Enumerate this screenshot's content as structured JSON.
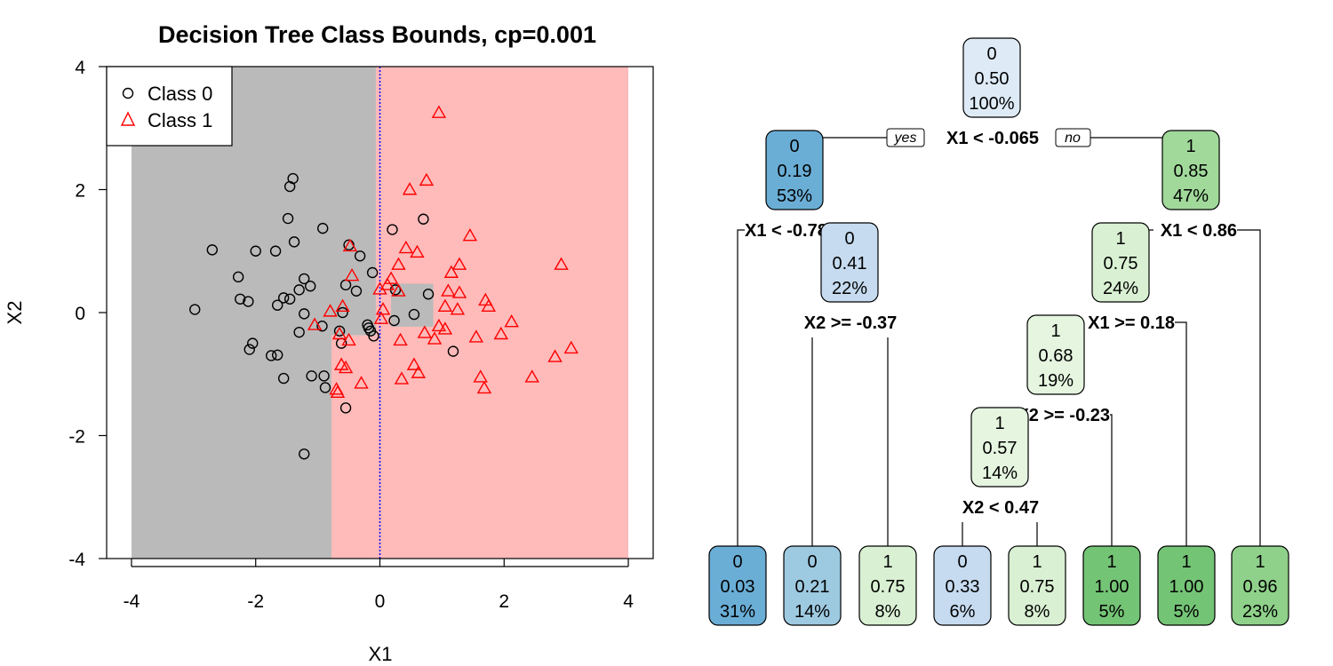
{
  "chart_data": [
    {
      "type": "scatter",
      "title": "Decision Tree Class Bounds, cp=0.001",
      "xlabel": "X1",
      "ylabel": "X2",
      "xlim": [
        -4.4,
        4.4
      ],
      "ylim": [
        -4.0,
        4.0
      ],
      "xticks": [
        "-4",
        "-2",
        "0",
        "2",
        "4"
      ],
      "yticks": [
        "-4",
        "-2",
        "0",
        "2",
        "4"
      ],
      "xtick_values": [
        -4,
        -2,
        0,
        2,
        4
      ],
      "ytick_values": [
        -4,
        -2,
        0,
        2,
        4
      ],
      "grid": false,
      "legend_position": "top-left",
      "legend": [
        {
          "label": "Class 0",
          "marker": "circle",
          "color": "#000000"
        },
        {
          "label": "Class 1",
          "marker": "triangle",
          "color": "#ff0000"
        }
      ],
      "regions": [
        {
          "class": "0",
          "color": "#bababa",
          "x0": -4,
          "x1": -0.78,
          "y0": -4,
          "y1": 4
        },
        {
          "class": "0",
          "color": "#bababa",
          "x0": -0.78,
          "x1": -0.065,
          "y0": -0.37,
          "y1": 4
        },
        {
          "class": "1",
          "color": "#ffbaba",
          "x0": -0.78,
          "x1": -0.065,
          "y0": -4,
          "y1": -0.37
        },
        {
          "class": "1",
          "color": "#ffbaba",
          "x0": -0.065,
          "x1": 4,
          "y0": -4,
          "y1": 4
        },
        {
          "class": "0",
          "color": "#bababa",
          "x0": 0.18,
          "x1": 0.86,
          "y0": -0.23,
          "y1": 0.47
        }
      ],
      "vline": {
        "x": 0,
        "color": "#0000ff",
        "style": "dotted"
      },
      "series": [
        {
          "name": "Class 0",
          "marker": "circle",
          "color": "#000000",
          "points": [
            [
              -1.4,
              2.18
            ],
            [
              -1.45,
              2.05
            ],
            [
              -1.48,
              1.53
            ],
            [
              -0.92,
              1.37
            ],
            [
              -1.38,
              1.15
            ],
            [
              -2.7,
              1.02
            ],
            [
              -2.0,
              1.0
            ],
            [
              -1.68,
              1.0
            ],
            [
              -0.5,
              1.1
            ],
            [
              -2.28,
              0.58
            ],
            [
              -1.22,
              0.55
            ],
            [
              -1.12,
              0.43
            ],
            [
              -2.25,
              0.22
            ],
            [
              -2.12,
              0.18
            ],
            [
              -1.55,
              0.24
            ],
            [
              -1.45,
              0.22
            ],
            [
              -1.3,
              0.37
            ],
            [
              -1.65,
              0.12
            ],
            [
              -2.98,
              0.05
            ],
            [
              -1.22,
              -0.02
            ],
            [
              -1.3,
              -0.32
            ],
            [
              -0.93,
              -0.22
            ],
            [
              -2.05,
              -0.5
            ],
            [
              -2.1,
              -0.6
            ],
            [
              -1.75,
              -0.7
            ],
            [
              -1.65,
              -0.69
            ],
            [
              -1.55,
              -1.07
            ],
            [
              -1.1,
              -1.03
            ],
            [
              -0.9,
              -1.03
            ],
            [
              -0.88,
              -1.22
            ],
            [
              -0.62,
              -0.5
            ],
            [
              -0.6,
              0.0
            ],
            [
              -0.55,
              0.45
            ],
            [
              -0.32,
              0.92
            ],
            [
              -0.38,
              0.35
            ],
            [
              -0.2,
              -0.2
            ],
            [
              -0.18,
              -0.25
            ],
            [
              -0.15,
              -0.3
            ],
            [
              -0.1,
              -0.38
            ],
            [
              -0.12,
              0.65
            ],
            [
              0.2,
              1.35
            ],
            [
              0.25,
              0.37
            ],
            [
              0.23,
              -0.13
            ],
            [
              0.55,
              -0.03
            ],
            [
              0.7,
              1.52
            ],
            [
              0.78,
              0.3
            ],
            [
              1.18,
              -0.63
            ],
            [
              -0.55,
              -1.55
            ],
            [
              -1.22,
              -2.3
            ],
            [
              -0.65,
              -0.3
            ]
          ]
        },
        {
          "name": "Class 1",
          "marker": "triangle",
          "color": "#ff0000",
          "points": [
            [
              0.95,
              3.25
            ],
            [
              0.75,
              2.15
            ],
            [
              0.48,
              2.0
            ],
            [
              1.45,
              1.25
            ],
            [
              0.6,
              0.98
            ],
            [
              0.42,
              1.05
            ],
            [
              0.3,
              0.78
            ],
            [
              1.28,
              0.78
            ],
            [
              1.15,
              0.65
            ],
            [
              0.18,
              0.55
            ],
            [
              0.12,
              0.45
            ],
            [
              0.0,
              0.38
            ],
            [
              0.05,
              0.05
            ],
            [
              0.02,
              -0.1
            ],
            [
              0.3,
              0.35
            ],
            [
              1.1,
              0.35
            ],
            [
              1.28,
              0.32
            ],
            [
              1.05,
              0.1
            ],
            [
              1.25,
              0.05
            ],
            [
              1.7,
              0.2
            ],
            [
              1.75,
              0.1
            ],
            [
              2.12,
              -0.15
            ],
            [
              1.95,
              -0.35
            ],
            [
              1.55,
              -0.4
            ],
            [
              1.05,
              -0.27
            ],
            [
              0.95,
              -0.22
            ],
            [
              0.72,
              -0.33
            ],
            [
              0.88,
              -0.43
            ],
            [
              0.33,
              -0.45
            ],
            [
              0.55,
              -0.85
            ],
            [
              0.62,
              -0.98
            ],
            [
              0.35,
              -1.08
            ],
            [
              1.62,
              -1.05
            ],
            [
              1.68,
              -1.23
            ],
            [
              2.45,
              -1.05
            ],
            [
              2.82,
              -0.72
            ],
            [
              3.08,
              -0.58
            ],
            [
              2.92,
              0.78
            ],
            [
              -0.48,
              1.08
            ],
            [
              -0.45,
              0.6
            ],
            [
              -0.6,
              0.1
            ],
            [
              -0.8,
              0.02
            ],
            [
              -0.5,
              -0.45
            ],
            [
              -0.65,
              -0.35
            ],
            [
              -0.62,
              -0.85
            ],
            [
              -0.55,
              -0.9
            ],
            [
              -0.7,
              -1.25
            ],
            [
              -0.68,
              -1.3
            ],
            [
              -0.3,
              -1.15
            ],
            [
              -1.05,
              -0.2
            ]
          ]
        }
      ]
    },
    {
      "type": "tree",
      "colors": {
        "0_strong": "#6aaed6",
        "0_mid": "#9ecae1",
        "0_light": "#c6dbef",
        "0_faint": "#deebf7",
        "1_faint": "#e5f5e0",
        "1_light": "#d9f0d3",
        "1_mid": "#a1d99b",
        "1_strong": "#8fd18a",
        "1_full": "#74c476"
      },
      "edge_labels": {
        "yes": "yes",
        "no": "no"
      },
      "nodes": [
        {
          "id": "root",
          "cls": "0",
          "prob": "0.50",
          "pct": "100%",
          "color": "#deebf7",
          "split": "X1 < -0.065"
        },
        {
          "id": "L",
          "cls": "0",
          "prob": "0.19",
          "pct": "53%",
          "color": "#6aaed6",
          "split": "X1 < -0.78"
        },
        {
          "id": "R",
          "cls": "1",
          "prob": "0.85",
          "pct": "47%",
          "color": "#a1d99b",
          "split": "X1 < 0.86"
        },
        {
          "id": "LR",
          "cls": "0",
          "prob": "0.41",
          "pct": "22%",
          "color": "#c6dbef",
          "split": "X2 >= -0.37"
        },
        {
          "id": "RL",
          "cls": "1",
          "prob": "0.75",
          "pct": "24%",
          "color": "#d9f0d3",
          "split": "X1 >= 0.18"
        },
        {
          "id": "RLL",
          "cls": "1",
          "prob": "0.68",
          "pct": "19%",
          "color": "#e5f5e0",
          "split": "X2 >= -0.23"
        },
        {
          "id": "RLLL",
          "cls": "1",
          "prob": "0.57",
          "pct": "14%",
          "color": "#e5f5e0",
          "split": "X2 < 0.47"
        },
        {
          "id": "leaf1",
          "cls": "0",
          "prob": "0.03",
          "pct": "31%",
          "color": "#6aaed6"
        },
        {
          "id": "leaf2",
          "cls": "0",
          "prob": "0.21",
          "pct": "14%",
          "color": "#9ecae1"
        },
        {
          "id": "leaf3",
          "cls": "1",
          "prob": "0.75",
          "pct": "8%",
          "color": "#d9f0d3"
        },
        {
          "id": "leaf4",
          "cls": "0",
          "prob": "0.33",
          "pct": "6%",
          "color": "#c6dbef"
        },
        {
          "id": "leaf5",
          "cls": "1",
          "prob": "0.75",
          "pct": "8%",
          "color": "#d9f0d3"
        },
        {
          "id": "leaf6",
          "cls": "1",
          "prob": "1.00",
          "pct": "5%",
          "color": "#74c476"
        },
        {
          "id": "leaf7",
          "cls": "1",
          "prob": "1.00",
          "pct": "5%",
          "color": "#74c476"
        },
        {
          "id": "leaf8",
          "cls": "1",
          "prob": "0.96",
          "pct": "23%",
          "color": "#8fd18a"
        }
      ]
    }
  ]
}
